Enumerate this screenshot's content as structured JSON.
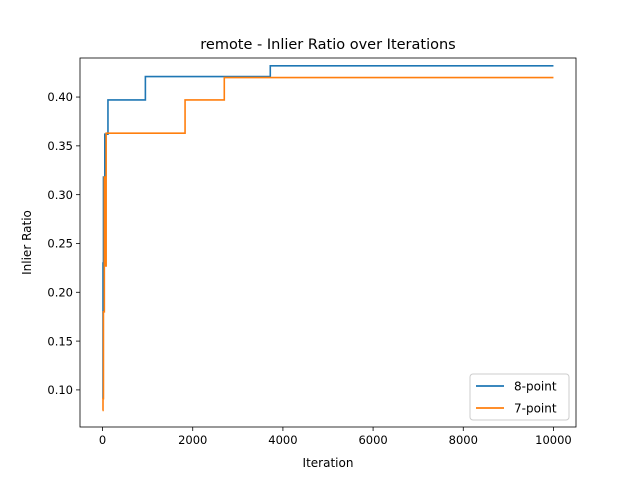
{
  "chart_data": {
    "type": "line",
    "title": "remote - Inlier Ratio over Iterations",
    "xlabel": "Iteration",
    "ylabel": "Inlier Ratio",
    "xlim": [
      -500,
      10500
    ],
    "ylim": [
      0.062,
      0.44
    ],
    "xticks": [
      0,
      2000,
      4000,
      6000,
      8000,
      10000
    ],
    "yticks": [
      0.1,
      0.15,
      0.2,
      0.25,
      0.3,
      0.35,
      0.4
    ],
    "xtick_labels": [
      "0",
      "2000",
      "4000",
      "6000",
      "8000",
      "10000"
    ],
    "ytick_labels": [
      "0.10",
      "0.15",
      "0.20",
      "0.25",
      "0.30",
      "0.35",
      "0.40"
    ],
    "grid": false,
    "legend_position": "lower-right",
    "step": "post",
    "series": [
      {
        "name": "8-point",
        "color": "#1f77b4",
        "x": [
          0,
          10,
          20,
          50,
          120,
          950,
          3720,
          10000
        ],
        "y": [
          0.091,
          0.23,
          0.318,
          0.362,
          0.397,
          0.421,
          0.432,
          0.432
        ]
      },
      {
        "name": "7-point",
        "color": "#ff7f0e",
        "x": [
          0,
          10,
          20,
          40,
          60,
          80,
          1830,
          2700,
          10000
        ],
        "y": [
          0.079,
          0.091,
          0.18,
          0.318,
          0.227,
          0.363,
          0.397,
          0.42,
          0.42
        ]
      }
    ]
  }
}
